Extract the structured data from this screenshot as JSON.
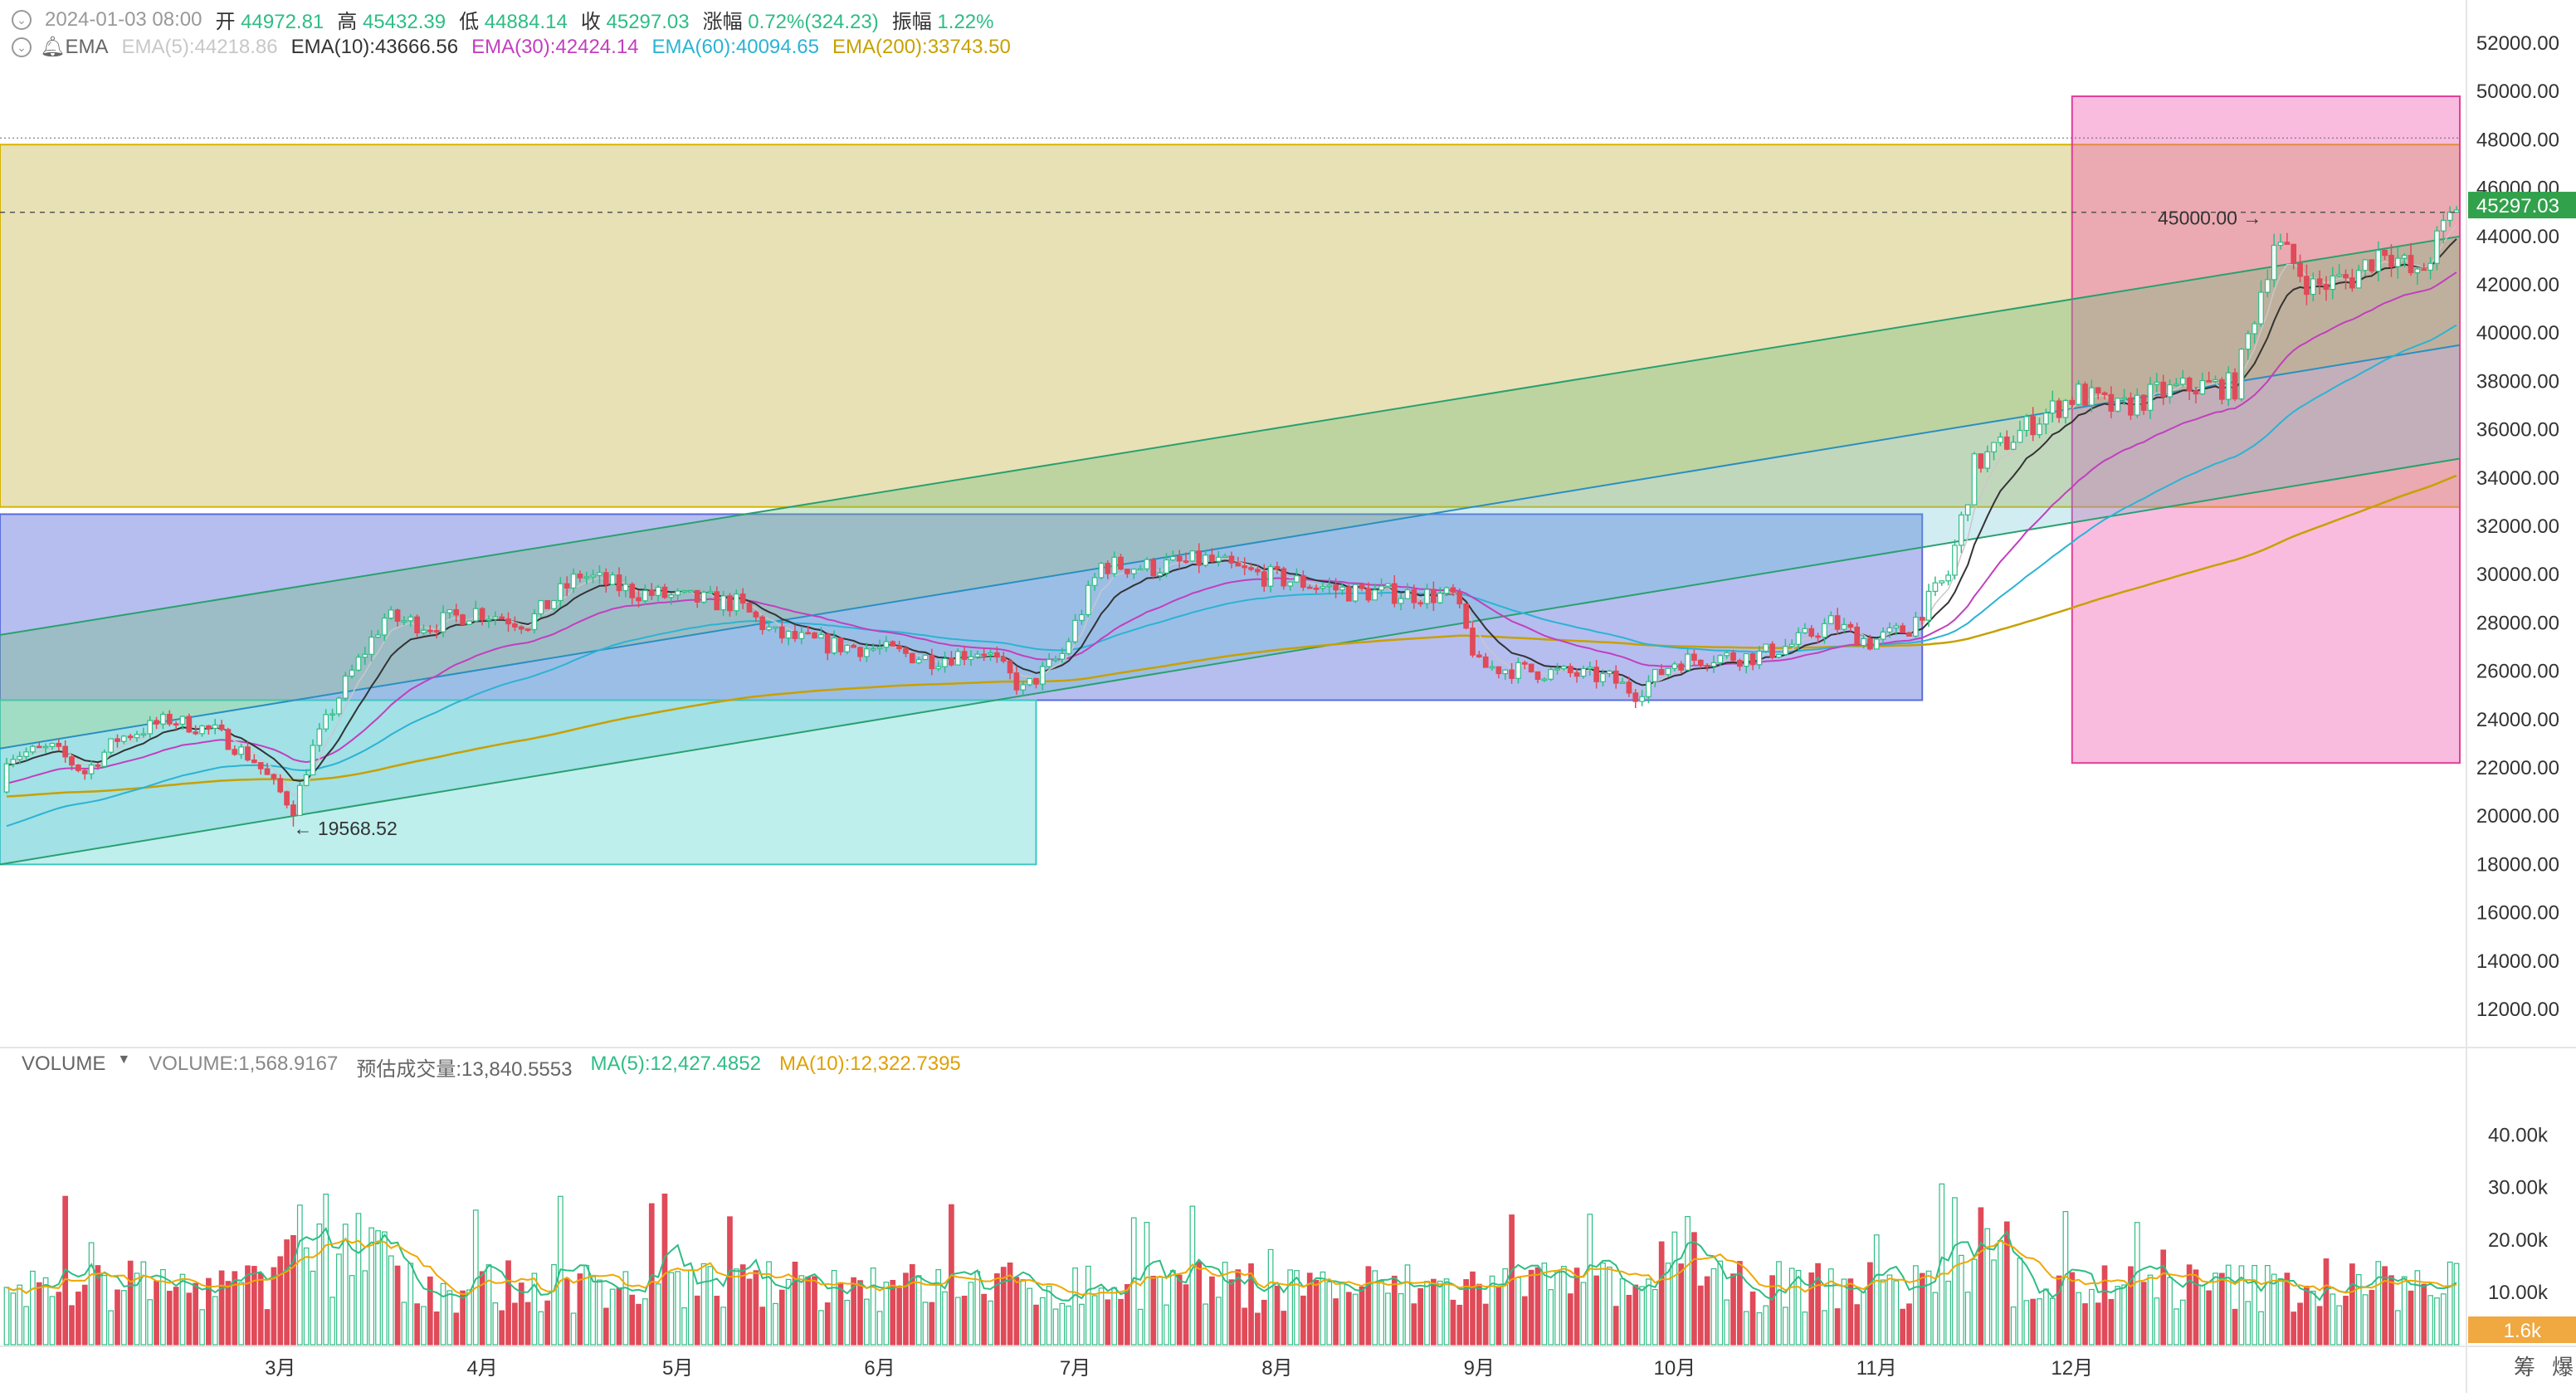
{
  "ohlc_legend": {
    "datetime": "2024-01-03 08:00",
    "open_label": "开",
    "open": "44972.81",
    "high_label": "高",
    "high": "45432.39",
    "low_label": "低",
    "low": "44884.14",
    "close_label": "收",
    "close": "45297.03",
    "change_label": "涨幅",
    "change": "0.72%(324.23)",
    "amplitude_label": "振幅",
    "amplitude": "1.22%"
  },
  "ema_legend": {
    "name": "EMA",
    "ema5": "EMA(5):44218.86",
    "ema10": "EMA(10):43666.56",
    "ema30": "EMA(30):42424.14",
    "ema60": "EMA(60):40094.65",
    "ema200": "EMA(200):33743.50"
  },
  "volume_legend": {
    "name": "VOLUME",
    "volume": "VOLUME:1,568.9167",
    "estimated": "预估成交量:13,840.5553",
    "ma5": "MA(5):12,427.4852",
    "ma10": "MA(10):12,322.7395"
  },
  "price_axis": [
    "52000.00",
    "50000.00",
    "48000.00",
    "46000.00",
    "44000.00",
    "42000.00",
    "40000.00",
    "38000.00",
    "36000.00",
    "34000.00",
    "32000.00",
    "30000.00",
    "28000.00",
    "26000.00",
    "24000.00",
    "22000.00",
    "20000.00",
    "18000.00",
    "16000.00",
    "14000.00",
    "12000.00"
  ],
  "volume_axis": [
    "40.00k",
    "30.00k",
    "20.00k",
    "10.00k"
  ],
  "current_price_label": "45297.03",
  "current_volume_label": "1.6k",
  "annotations": {
    "level_line": "45000.00 →",
    "low_marker": "← 19568.52"
  },
  "time_axis": [
    "3月",
    "4月",
    "5月",
    "6月",
    "7月",
    "8月",
    "9月",
    "10月",
    "11月",
    "12月"
  ],
  "bottom_right_buttons": [
    "筹",
    "爆"
  ],
  "colors": {
    "up": "#2ebd85",
    "down": "#e04a59",
    "ema5": "#c8c8c8",
    "ema10": "#333333",
    "ema30": "#c23fbf",
    "ema60": "#2bb3d4",
    "ema200": "#c8a000",
    "ma5": "#2ebd85",
    "ma10": "#f0a800",
    "price_tag": "#31a14b"
  },
  "chart_data": {
    "type": "candlestick",
    "x_range": [
      "2023-01-18",
      "2024-01-03"
    ],
    "ylim": [
      11000,
      53000
    ],
    "volume_ylim": [
      0,
      45000
    ],
    "start_price": 21000,
    "key_closes": [
      [
        0,
        22500
      ],
      [
        7,
        22800
      ],
      [
        12,
        21800
      ],
      [
        17,
        23200
      ],
      [
        25,
        24000
      ],
      [
        32,
        23500
      ],
      [
        38,
        22300
      ],
      [
        44,
        20300
      ],
      [
        47,
        22800
      ],
      [
        52,
        25500
      ],
      [
        58,
        28200
      ],
      [
        65,
        27900
      ],
      [
        72,
        28500
      ],
      [
        80,
        28000
      ],
      [
        88,
        30000
      ],
      [
        96,
        29300
      ],
      [
        104,
        29000
      ],
      [
        112,
        28800
      ],
      [
        118,
        27500
      ],
      [
        126,
        27100
      ],
      [
        134,
        26900
      ],
      [
        142,
        26500
      ],
      [
        150,
        26900
      ],
      [
        156,
        25200
      ],
      [
        162,
        26700
      ],
      [
        168,
        30400
      ],
      [
        176,
        30300
      ],
      [
        184,
        30600
      ],
      [
        190,
        30100
      ],
      [
        198,
        29700
      ],
      [
        206,
        29300
      ],
      [
        214,
        29200
      ],
      [
        222,
        29100
      ],
      [
        226,
        26200
      ],
      [
        234,
        26000
      ],
      [
        240,
        25900
      ],
      [
        246,
        25700
      ],
      [
        250,
        25100
      ],
      [
        256,
        26400
      ],
      [
        262,
        26600
      ],
      [
        268,
        26600
      ],
      [
        274,
        27100
      ],
      [
        280,
        28000
      ],
      [
        286,
        27200
      ],
      [
        292,
        27800
      ],
      [
        298,
        30000
      ],
      [
        302,
        34500
      ],
      [
        306,
        35300
      ],
      [
        312,
        36500
      ],
      [
        318,
        37500
      ],
      [
        324,
        36800
      ],
      [
        330,
        37500
      ],
      [
        336,
        37800
      ],
      [
        342,
        37800
      ],
      [
        348,
        43800
      ],
      [
        354,
        41900
      ],
      [
        360,
        42300
      ],
      [
        365,
        43600
      ],
      [
        370,
        42200
      ],
      [
        376,
        45297
      ]
    ],
    "ema_start": {
      "ema5": 22200,
      "ema10": 22100,
      "ema30": 21300,
      "ema60": 19500,
      "ema200": 20800
    },
    "levels": {
      "horizontal": 45000,
      "low_marker": 19568.52
    },
    "zones": [
      {
        "name": "yellow-zone",
        "from": "2023-01-18",
        "to": "2024-01-03",
        "low": 32800,
        "high": 47800
      },
      {
        "name": "blue-zone",
        "from": "2023-01-18",
        "to": "2023-11-08",
        "low": 24800,
        "high": 32500
      },
      {
        "name": "cyan-zone",
        "from": "2023-01-18",
        "to": "2023-06-25",
        "low": 18000,
        "high": 24800
      },
      {
        "name": "pink-zone",
        "from": "2023-12-01",
        "to": "2024-01-03",
        "low": 22200,
        "high": 49800
      }
    ],
    "channel_lines": [
      {
        "from": [
          "2023-01-18",
          27500
        ],
        "to": [
          "2024-01-03",
          44000
        ]
      },
      {
        "from": [
          "2023-01-18",
          22800
        ],
        "to": [
          "2024-01-03",
          39500
        ]
      },
      {
        "from": [
          "2023-01-18",
          18000
        ],
        "to": [
          "2024-01-03",
          34800
        ]
      }
    ]
  }
}
